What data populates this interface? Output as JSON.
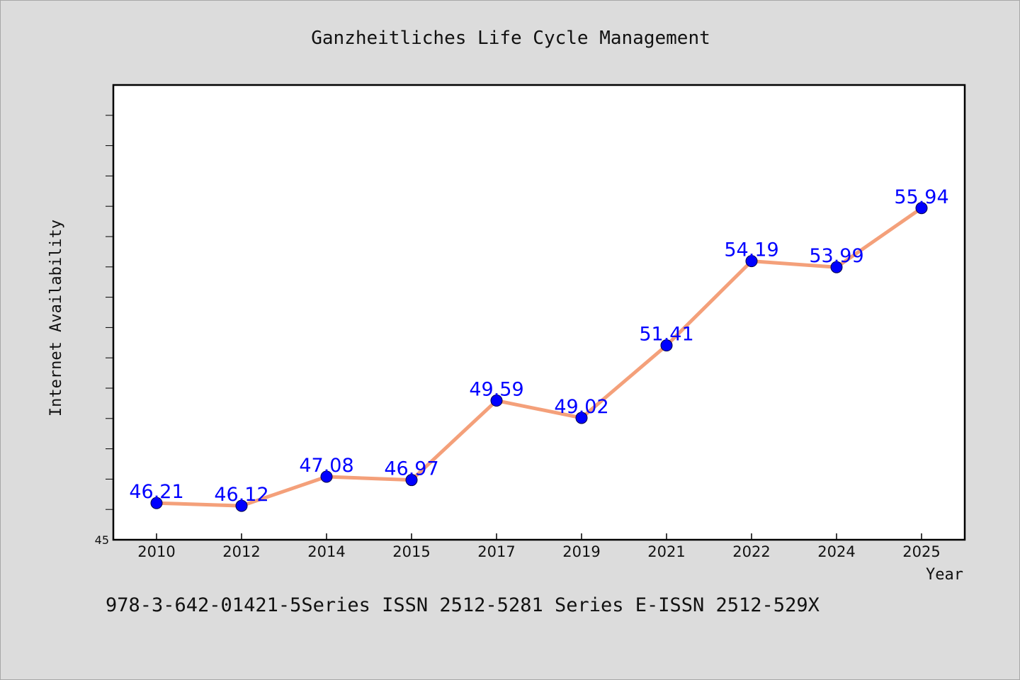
{
  "chart_data": {
    "type": "line",
    "title": "Ganzheitliches Life Cycle Management",
    "xlabel": "Year",
    "ylabel": "Internet Availability",
    "categories": [
      "2010",
      "2012",
      "2014",
      "2015",
      "2017",
      "2019",
      "2021",
      "2022",
      "2024",
      "2025"
    ],
    "series": [
      {
        "values": [
          46.21,
          46.12,
          47.08,
          46.97,
          49.59,
          49.02,
          51.41,
          54.19,
          53.99,
          55.94
        ]
      }
    ],
    "data_labels": [
      "46.21",
      "46.12",
      "47.08",
      "46.97",
      "49.59",
      "49.02",
      "51.41",
      "54.19",
      "53.99",
      "55.94"
    ],
    "ylim": [
      45,
      60
    ],
    "y_tick_labels": [
      "45"
    ],
    "y_minor_step": 1,
    "grid": false,
    "line_color": "#f4a07a",
    "marker_color": "#0000ff",
    "label_color": "#0000ff",
    "footer_text": "978-3-642-01421-5Series ISSN 2512-5281 Series E-ISSN 2512-529X"
  }
}
